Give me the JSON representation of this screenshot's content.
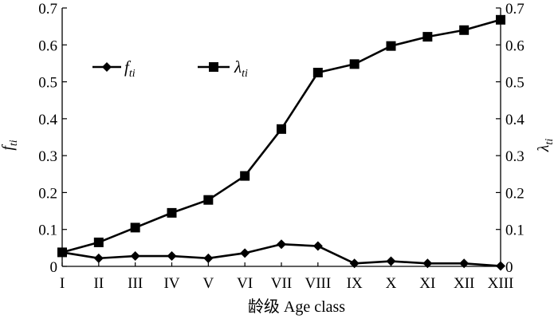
{
  "chart_data": {
    "type": "line",
    "categories": [
      "I",
      "II",
      "III",
      "IV",
      "V",
      "VI",
      "VII",
      "VIII",
      "IX",
      "X",
      "XI",
      "XII",
      "XIII"
    ],
    "xlabel": "龄级 Age class",
    "ylabel_left": "f_ti",
    "ylabel_right": "λ_ti",
    "ylim": [
      0,
      0.7
    ],
    "yticks": [
      "0",
      "0.1",
      "0.2",
      "0.3",
      "0.4",
      "0.5",
      "0.6",
      "0.7"
    ],
    "legend_position": "upper-left",
    "series": [
      {
        "name": "f_ti",
        "axis": "left",
        "marker": "diamond",
        "values": [
          0.038,
          0.022,
          0.028,
          0.028,
          0.022,
          0.036,
          0.06,
          0.055,
          0.008,
          0.014,
          0.008,
          0.008,
          0.001
        ]
      },
      {
        "name": "λ_ti",
        "axis": "right",
        "marker": "square",
        "values": [
          0.038,
          0.065,
          0.105,
          0.145,
          0.18,
          0.245,
          0.372,
          0.525,
          0.548,
          0.597,
          0.622,
          0.64,
          0.668
        ]
      }
    ]
  }
}
